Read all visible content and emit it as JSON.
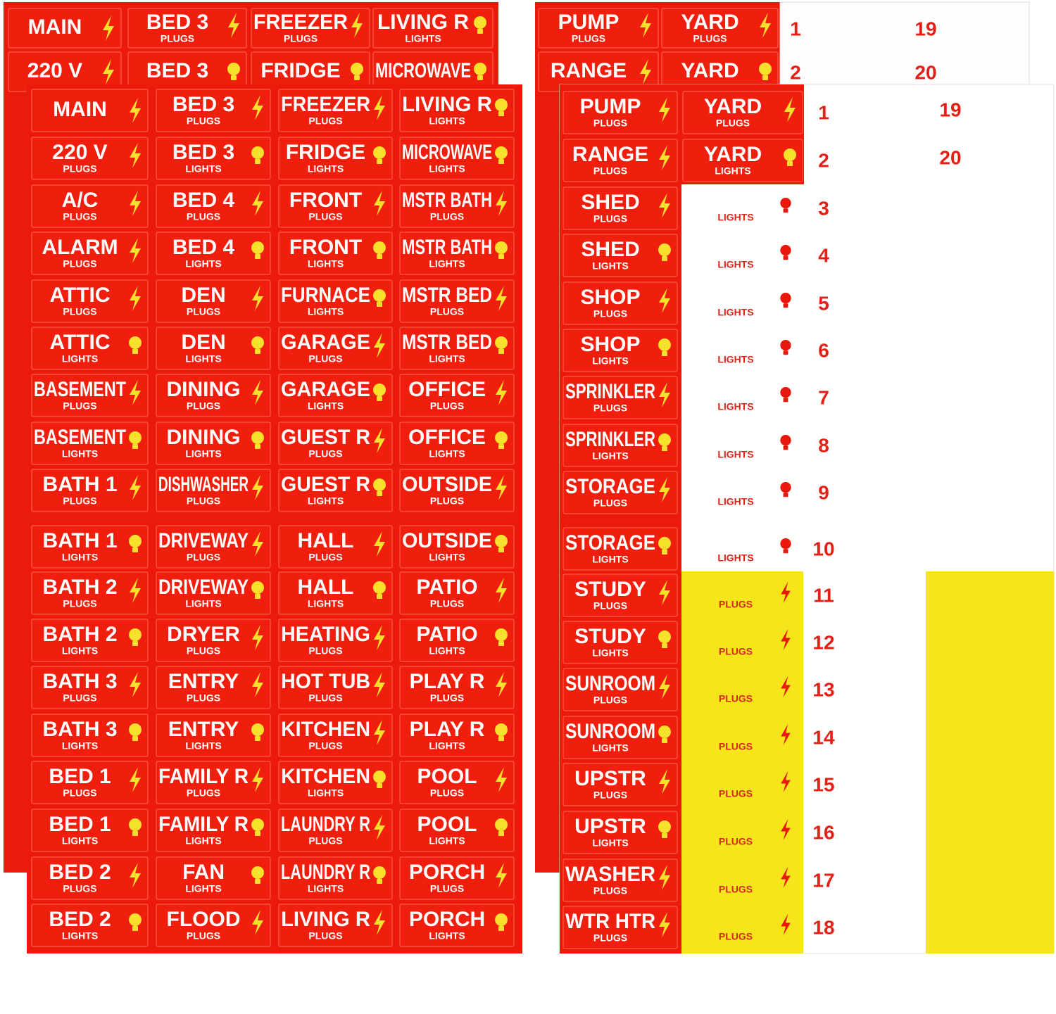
{
  "back_left": {
    "rows": [
      [
        {
          "name": "MAIN",
          "icon": "bolt"
        },
        {
          "name": "BED 3",
          "sub": "PLUGS",
          "icon": "bolt"
        },
        {
          "name": "FREEZER",
          "sub": "PLUGS",
          "icon": "bolt"
        },
        {
          "name": "LIVING R",
          "sub": "LIGHTS",
          "icon": "bulb"
        }
      ],
      [
        {
          "name": "220 V",
          "icon": "bolt"
        },
        {
          "name": "BED 3",
          "icon": "bulb"
        },
        {
          "name": "FRIDGE",
          "icon": "bulb"
        },
        {
          "name": "MICROWAVE",
          "icon": "bulb"
        }
      ]
    ]
  },
  "back_right": {
    "rows": [
      [
        {
          "name": "PUMP",
          "sub": "PLUGS",
          "icon": "bolt"
        },
        {
          "name": "YARD",
          "sub": "PLUGS",
          "icon": "bolt"
        }
      ],
      [
        {
          "name": "RANGE",
          "icon": "bolt"
        },
        {
          "name": "YARD",
          "icon": "bulb"
        }
      ]
    ],
    "numbers": [
      [
        1,
        19
      ],
      [
        2,
        20
      ]
    ]
  },
  "front_left": {
    "columns": [
      [
        {
          "name": "MAIN",
          "icon": "bolt"
        },
        {
          "name": "220 V",
          "sub": "PLUGS",
          "icon": "bolt"
        },
        {
          "name": "A/C",
          "sub": "PLUGS",
          "icon": "bolt"
        },
        {
          "name": "ALARM",
          "sub": "PLUGS",
          "icon": "bolt"
        },
        {
          "name": "ATTIC",
          "sub": "PLUGS",
          "icon": "bolt"
        },
        {
          "name": "ATTIC",
          "sub": "LIGHTS",
          "icon": "bulb"
        },
        {
          "name": "BASEMENT",
          "sub": "PLUGS",
          "icon": "bolt"
        },
        {
          "name": "BASEMENT",
          "sub": "LIGHTS",
          "icon": "bulb"
        },
        {
          "name": "BATH 1",
          "sub": "PLUGS",
          "icon": "bolt"
        },
        {
          "name": "BATH 1",
          "sub": "LIGHTS",
          "icon": "bulb"
        },
        {
          "name": "BATH 2",
          "sub": "PLUGS",
          "icon": "bolt"
        },
        {
          "name": "BATH 2",
          "sub": "LIGHTS",
          "icon": "bulb"
        },
        {
          "name": "BATH 3",
          "sub": "PLUGS",
          "icon": "bolt"
        },
        {
          "name": "BATH 3",
          "sub": "LIGHTS",
          "icon": "bulb"
        },
        {
          "name": "BED 1",
          "sub": "PLUGS",
          "icon": "bolt"
        },
        {
          "name": "BED 1",
          "sub": "LIGHTS",
          "icon": "bulb"
        },
        {
          "name": "BED 2",
          "sub": "PLUGS",
          "icon": "bolt"
        },
        {
          "name": "BED 2",
          "sub": "LIGHTS",
          "icon": "bulb"
        }
      ],
      [
        {
          "name": "BED 3",
          "sub": "PLUGS",
          "icon": "bolt"
        },
        {
          "name": "BED 3",
          "sub": "LIGHTS",
          "icon": "bulb"
        },
        {
          "name": "BED 4",
          "sub": "PLUGS",
          "icon": "bolt"
        },
        {
          "name": "BED 4",
          "sub": "LIGHTS",
          "icon": "bulb"
        },
        {
          "name": "DEN",
          "sub": "PLUGS",
          "icon": "bolt"
        },
        {
          "name": "DEN",
          "sub": "LIGHTS",
          "icon": "bulb"
        },
        {
          "name": "DINING",
          "sub": "PLUGS",
          "icon": "bolt"
        },
        {
          "name": "DINING",
          "sub": "LIGHTS",
          "icon": "bulb"
        },
        {
          "name": "DISHWASHER",
          "sub": "PLUGS",
          "icon": "bolt"
        },
        {
          "name": "DRIVEWAY",
          "sub": "PLUGS",
          "icon": "bolt"
        },
        {
          "name": "DRIVEWAY",
          "sub": "LIGHTS",
          "icon": "bulb"
        },
        {
          "name": "DRYER",
          "sub": "PLUGS",
          "icon": "bolt"
        },
        {
          "name": "ENTRY",
          "sub": "PLUGS",
          "icon": "bolt"
        },
        {
          "name": "ENTRY",
          "sub": "LIGHTS",
          "icon": "bulb"
        },
        {
          "name": "FAMILY R",
          "sub": "PLUGS",
          "icon": "bolt"
        },
        {
          "name": "FAMILY R",
          "sub": "LIGHTS",
          "icon": "bulb"
        },
        {
          "name": "FAN",
          "sub": "LIGHTS",
          "icon": "bulb"
        },
        {
          "name": "FLOOD",
          "sub": "PLUGS",
          "icon": "bolt"
        }
      ],
      [
        {
          "name": "FREEZER",
          "sub": "PLUGS",
          "icon": "bolt"
        },
        {
          "name": "FRIDGE",
          "sub": "LIGHTS",
          "icon": "bulb"
        },
        {
          "name": "FRONT",
          "sub": "PLUGS",
          "icon": "bolt"
        },
        {
          "name": "FRONT",
          "sub": "LIGHTS",
          "icon": "bulb"
        },
        {
          "name": "FURNACE",
          "sub": "LIGHTS",
          "icon": "bulb"
        },
        {
          "name": "GARAGE",
          "sub": "PLUGS",
          "icon": "bolt"
        },
        {
          "name": "GARAGE",
          "sub": "LIGHTS",
          "icon": "bulb"
        },
        {
          "name": "GUEST R",
          "sub": "PLUGS",
          "icon": "bolt"
        },
        {
          "name": "GUEST R",
          "sub": "LIGHTS",
          "icon": "bulb"
        },
        {
          "name": "HALL",
          "sub": "PLUGS",
          "icon": "bolt"
        },
        {
          "name": "HALL",
          "sub": "LIGHTS",
          "icon": "bulb"
        },
        {
          "name": "HEATING",
          "sub": "PLUGS",
          "icon": "bolt"
        },
        {
          "name": "HOT TUB",
          "sub": "PLUGS",
          "icon": "bolt"
        },
        {
          "name": "KITCHEN",
          "sub": "PLUGS",
          "icon": "bolt"
        },
        {
          "name": "KITCHEN",
          "sub": "LIGHTS",
          "icon": "bulb"
        },
        {
          "name": "LAUNDRY R",
          "sub": "PLUGS",
          "icon": "bolt"
        },
        {
          "name": "LAUNDRY R",
          "sub": "LIGHTS",
          "icon": "bulb"
        },
        {
          "name": "LIVING R",
          "sub": "PLUGS",
          "icon": "bolt"
        }
      ],
      [
        {
          "name": "LIVING R",
          "sub": "LIGHTS",
          "icon": "bulb"
        },
        {
          "name": "MICROWAVE",
          "sub": "LIGHTS",
          "icon": "bulb"
        },
        {
          "name": "MSTR BATH",
          "sub": "PLUGS",
          "icon": "bolt"
        },
        {
          "name": "MSTR BATH",
          "sub": "LIGHTS",
          "icon": "bulb"
        },
        {
          "name": "MSTR BED",
          "sub": "PLUGS",
          "icon": "bolt"
        },
        {
          "name": "MSTR BED",
          "sub": "LIGHTS",
          "icon": "bulb"
        },
        {
          "name": "OFFICE",
          "sub": "PLUGS",
          "icon": "bolt"
        },
        {
          "name": "OFFICE",
          "sub": "LIGHTS",
          "icon": "bulb"
        },
        {
          "name": "OUTSIDE",
          "sub": "PLUGS",
          "icon": "bolt"
        },
        {
          "name": "OUTSIDE",
          "sub": "LIGHTS",
          "icon": "bulb"
        },
        {
          "name": "PATIO",
          "sub": "PLUGS",
          "icon": "bolt"
        },
        {
          "name": "PATIO",
          "sub": "LIGHTS",
          "icon": "bulb"
        },
        {
          "name": "PLAY R",
          "sub": "PLUGS",
          "icon": "bolt"
        },
        {
          "name": "PLAY R",
          "sub": "LIGHTS",
          "icon": "bulb"
        },
        {
          "name": "POOL",
          "sub": "PLUGS",
          "icon": "bolt"
        },
        {
          "name": "POOL",
          "sub": "LIGHTS",
          "icon": "bulb"
        },
        {
          "name": "PORCH",
          "sub": "PLUGS",
          "icon": "bolt"
        },
        {
          "name": "PORCH",
          "sub": "LIGHTS",
          "icon": "bulb"
        }
      ]
    ]
  },
  "front_right": {
    "names": [
      {
        "name": "PUMP",
        "sub": "PLUGS",
        "icon": "bolt"
      },
      {
        "name": "RANGE",
        "sub": "PLUGS",
        "icon": "bolt"
      },
      {
        "name": "SHED",
        "sub": "PLUGS",
        "icon": "bolt"
      },
      {
        "name": "SHED",
        "sub": "LIGHTS",
        "icon": "bulb"
      },
      {
        "name": "SHOP",
        "sub": "PLUGS",
        "icon": "bolt"
      },
      {
        "name": "SHOP",
        "sub": "LIGHTS",
        "icon": "bulb"
      },
      {
        "name": "SPRINKLER",
        "sub": "PLUGS",
        "icon": "bolt"
      },
      {
        "name": "SPRINKLER",
        "sub": "LIGHTS",
        "icon": "bulb"
      },
      {
        "name": "STORAGE",
        "sub": "PLUGS",
        "icon": "bolt"
      },
      {
        "name": "STORAGE",
        "sub": "LIGHTS",
        "icon": "bulb"
      },
      {
        "name": "STUDY",
        "sub": "PLUGS",
        "icon": "bolt"
      },
      {
        "name": "STUDY",
        "sub": "LIGHTS",
        "icon": "bulb"
      },
      {
        "name": "SUNROOM",
        "sub": "PLUGS",
        "icon": "bolt"
      },
      {
        "name": "SUNROOM",
        "sub": "LIGHTS",
        "icon": "bulb"
      },
      {
        "name": "UPSTR",
        "sub": "PLUGS",
        "icon": "bolt"
      },
      {
        "name": "UPSTR",
        "sub": "LIGHTS",
        "icon": "bulb"
      },
      {
        "name": "WASHER",
        "sub": "PLUGS",
        "icon": "bolt"
      },
      {
        "name": "WTR HTR",
        "sub": "PLUGS",
        "icon": "bolt"
      }
    ],
    "yard": [
      {
        "name": "YARD",
        "sub": "PLUGS",
        "icon": "bolt"
      },
      {
        "name": "YARD",
        "sub": "LIGHTS",
        "icon": "bulb"
      }
    ],
    "tags": [
      {
        "text": "LIGHTS",
        "icon": "bulb"
      },
      {
        "text": "LIGHTS",
        "icon": "bulb"
      },
      {
        "text": "LIGHTS",
        "icon": "bulb"
      },
      {
        "text": "LIGHTS",
        "icon": "bulb"
      },
      {
        "text": "LIGHTS",
        "icon": "bulb"
      },
      {
        "text": "LIGHTS",
        "icon": "bulb"
      },
      {
        "text": "LIGHTS",
        "icon": "bulb"
      },
      {
        "text": "LIGHTS",
        "icon": "bulb"
      },
      {
        "text": "PLUGS",
        "icon": "bolt"
      },
      {
        "text": "PLUGS",
        "icon": "bolt"
      },
      {
        "text": "PLUGS",
        "icon": "bolt"
      },
      {
        "text": "PLUGS",
        "icon": "bolt"
      },
      {
        "text": "PLUGS",
        "icon": "bolt"
      },
      {
        "text": "PLUGS",
        "icon": "bolt"
      },
      {
        "text": "PLUGS",
        "icon": "bolt"
      },
      {
        "text": "PLUGS",
        "icon": "bolt"
      }
    ],
    "numbers": [
      1,
      2,
      3,
      4,
      5,
      6,
      7,
      8,
      9,
      10,
      11,
      12,
      13,
      14,
      15,
      16,
      17,
      18
    ],
    "numbers_extra": [
      19,
      20
    ]
  }
}
